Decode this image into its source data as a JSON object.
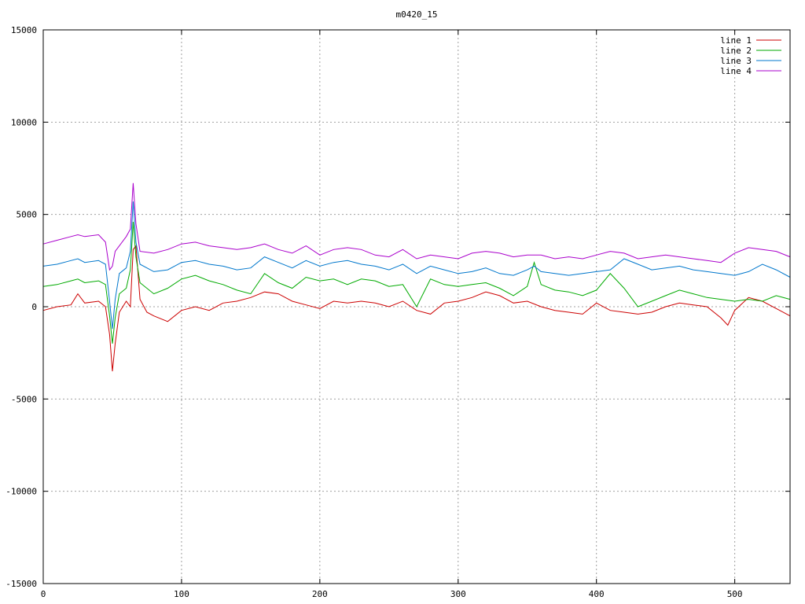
{
  "chart_data": {
    "type": "line",
    "title": "m0420_15",
    "xlabel": "",
    "ylabel": "",
    "xlim": [
      0,
      540
    ],
    "ylim": [
      -15000,
      15000
    ],
    "xticks": [
      0,
      100,
      200,
      300,
      400,
      500
    ],
    "yticks": [
      -15000,
      -10000,
      -5000,
      0,
      5000,
      10000,
      15000
    ],
    "grid": true,
    "legend": "top-right",
    "series": [
      {
        "name": "line 1",
        "color": "#cc0000",
        "x": [
          0,
          10,
          20,
          25,
          30,
          40,
          45,
          48,
          50,
          52,
          55,
          60,
          63,
          65,
          67,
          70,
          75,
          80,
          90,
          100,
          110,
          120,
          130,
          140,
          150,
          160,
          170,
          180,
          190,
          200,
          210,
          220,
          230,
          240,
          250,
          260,
          270,
          280,
          290,
          300,
          310,
          320,
          330,
          340,
          350,
          360,
          370,
          380,
          390,
          400,
          410,
          420,
          430,
          440,
          450,
          460,
          470,
          480,
          490,
          495,
          500,
          510,
          520,
          530,
          540
        ],
        "y": [
          -200,
          0,
          100,
          700,
          200,
          300,
          0,
          -1500,
          -3500,
          -2000,
          -300,
          300,
          0,
          3100,
          3300,
          400,
          -300,
          -500,
          -800,
          -200,
          0,
          -200,
          200,
          300,
          500,
          800,
          700,
          300,
          100,
          -100,
          300,
          200,
          300,
          200,
          0,
          300,
          -200,
          -400,
          200,
          300,
          500,
          800,
          600,
          200,
          300,
          0,
          -200,
          -300,
          -400,
          200,
          -200,
          -300,
          -400,
          -300,
          0,
          200,
          100,
          0,
          -600,
          -1000,
          -200,
          500,
          300,
          -100,
          -500
        ]
      },
      {
        "name": "line 2",
        "color": "#00aa00",
        "x": [
          0,
          10,
          20,
          25,
          30,
          40,
          45,
          48,
          50,
          52,
          55,
          60,
          63,
          65,
          67,
          70,
          80,
          90,
          100,
          110,
          120,
          130,
          140,
          150,
          160,
          170,
          180,
          190,
          200,
          210,
          220,
          230,
          240,
          250,
          260,
          270,
          280,
          290,
          300,
          310,
          320,
          330,
          340,
          350,
          355,
          360,
          370,
          380,
          390,
          400,
          410,
          420,
          430,
          440,
          450,
          460,
          470,
          480,
          490,
          500,
          510,
          520,
          530,
          540
        ],
        "y": [
          1100,
          1200,
          1400,
          1500,
          1300,
          1400,
          1200,
          -500,
          -2000,
          -600,
          700,
          1000,
          2000,
          4600,
          2700,
          1300,
          700,
          1000,
          1500,
          1700,
          1400,
          1200,
          900,
          700,
          1800,
          1300,
          1000,
          1600,
          1400,
          1500,
          1200,
          1500,
          1400,
          1100,
          1200,
          0,
          1500,
          1200,
          1100,
          1200,
          1300,
          1000,
          600,
          1100,
          2400,
          1200,
          900,
          800,
          600,
          900,
          1800,
          1000,
          0,
          300,
          600,
          900,
          700,
          500,
          400,
          300,
          400,
          300,
          600,
          400
        ]
      },
      {
        "name": "line 3",
        "color": "#0077cc",
        "x": [
          0,
          10,
          20,
          25,
          30,
          40,
          45,
          48,
          50,
          52,
          55,
          60,
          63,
          65,
          67,
          70,
          80,
          90,
          100,
          110,
          120,
          130,
          140,
          150,
          160,
          170,
          180,
          190,
          200,
          210,
          220,
          230,
          240,
          250,
          260,
          270,
          280,
          290,
          300,
          310,
          320,
          330,
          340,
          350,
          355,
          360,
          370,
          380,
          390,
          400,
          410,
          420,
          430,
          440,
          450,
          460,
          470,
          480,
          490,
          500,
          510,
          520,
          530,
          540
        ],
        "y": [
          2200,
          2300,
          2500,
          2600,
          2400,
          2500,
          2300,
          300,
          -1200,
          400,
          1800,
          2100,
          3000,
          5700,
          3500,
          2300,
          1900,
          2000,
          2400,
          2500,
          2300,
          2200,
          2000,
          2100,
          2700,
          2400,
          2100,
          2500,
          2200,
          2400,
          2500,
          2300,
          2200,
          2000,
          2300,
          1800,
          2200,
          2000,
          1800,
          1900,
          2100,
          1800,
          1700,
          2000,
          2200,
          1900,
          1800,
          1700,
          1800,
          1900,
          2000,
          2600,
          2300,
          2000,
          2100,
          2200,
          2000,
          1900,
          1800,
          1700,
          1900,
          2300,
          2000,
          1600
        ]
      },
      {
        "name": "line 4",
        "color": "#aa00cc",
        "x": [
          0,
          10,
          20,
          25,
          30,
          40,
          45,
          48,
          50,
          52,
          55,
          60,
          63,
          65,
          67,
          70,
          80,
          90,
          100,
          110,
          120,
          130,
          140,
          150,
          160,
          170,
          180,
          190,
          200,
          210,
          220,
          230,
          240,
          250,
          260,
          270,
          280,
          290,
          300,
          310,
          320,
          330,
          340,
          350,
          360,
          370,
          380,
          390,
          400,
          410,
          420,
          430,
          440,
          450,
          460,
          470,
          480,
          490,
          500,
          510,
          520,
          530,
          540
        ],
        "y": [
          3400,
          3600,
          3800,
          3900,
          3800,
          3900,
          3500,
          2000,
          2200,
          3000,
          3300,
          3800,
          4200,
          6700,
          4500,
          3000,
          2900,
          3100,
          3400,
          3500,
          3300,
          3200,
          3100,
          3200,
          3400,
          3100,
          2900,
          3300,
          2800,
          3100,
          3200,
          3100,
          2800,
          2700,
          3100,
          2600,
          2800,
          2700,
          2600,
          2900,
          3000,
          2900,
          2700,
          2800,
          2800,
          2600,
          2700,
          2600,
          2800,
          3000,
          2900,
          2600,
          2700,
          2800,
          2700,
          2600,
          2500,
          2400,
          2900,
          3200,
          3100,
          3000,
          2700
        ]
      }
    ]
  }
}
